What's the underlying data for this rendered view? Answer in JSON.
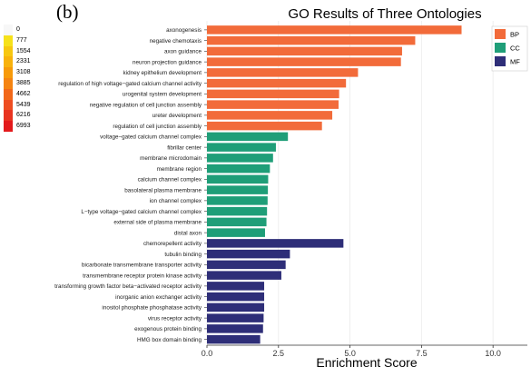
{
  "panel_label": "(b)",
  "color_scale": {
    "labels": [
      "0",
      "777",
      "1554",
      "2331",
      "3108",
      "3885",
      "4662",
      "5439",
      "6216",
      "6993"
    ],
    "colors": [
      "#f7f7f7",
      "#f6e11a",
      "#f7c710",
      "#f8b20c",
      "#f79a0a",
      "#f58412",
      "#f2681a",
      "#ee4d21",
      "#e83320",
      "#e31a1c"
    ]
  },
  "chart_data": {
    "type": "bar",
    "orientation": "horizontal",
    "title": "GO Results of Three Ontologies",
    "xlabel": "Enrichment Score",
    "xlim": [
      0,
      11.2
    ],
    "xticks": [
      "0.0",
      "2.5",
      "5.0",
      "7.5",
      "10.0"
    ],
    "xtick_values": [
      0,
      2.5,
      5,
      7.5,
      10
    ],
    "legend_position": "top-right",
    "series": [
      {
        "name": "BP",
        "color": "#f26b3a",
        "categories": [
          "axonogenesis",
          "negative chemotaxis",
          "axon guidance",
          "neuron projection guidance",
          "kidney epithelium development",
          "regulation of high voltage−gated calcium channel activity",
          "urogenital system development",
          "negative regulation of cell junction assembly",
          "ureter development",
          "regulation of cell junction assembly"
        ],
        "values": [
          8.9,
          7.28,
          6.82,
          6.78,
          5.28,
          4.86,
          4.62,
          4.6,
          4.38,
          4.02
        ]
      },
      {
        "name": "CC",
        "color": "#1f9e78",
        "categories": [
          "voltage−gated calcium channel complex",
          "fibrillar center",
          "membrane microdomain",
          "membrane region",
          "calcium channel complex",
          "basolateral plasma membrane",
          "ion channel complex",
          "L−type voltage−gated calcium channel complex",
          "external side of plasma membrane",
          "distal axon"
        ],
        "values": [
          2.83,
          2.41,
          2.31,
          2.2,
          2.14,
          2.13,
          2.12,
          2.1,
          2.08,
          2.03
        ]
      },
      {
        "name": "MF",
        "color": "#2e2e78",
        "categories": [
          "chemorepellent activity",
          "tubulin binding",
          "bicarbonate transmembrane transporter activity",
          "transmembrane receptor protein kinase activity",
          "transforming growth factor beta−activated receptor activity",
          "inorganic anion exchanger activity",
          "inositol phosphate phosphatase activity",
          "virus receptor activity",
          "exogenous protein binding",
          "HMG box domain binding"
        ],
        "values": [
          4.77,
          2.9,
          2.75,
          2.6,
          2.0,
          2.0,
          2.0,
          1.98,
          1.96,
          1.86
        ]
      }
    ]
  }
}
